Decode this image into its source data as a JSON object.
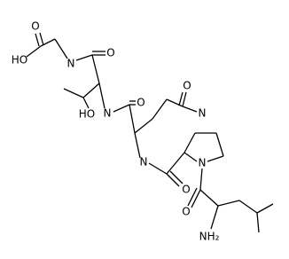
{
  "atoms": [
    {
      "label": "O"
    },
    {
      "label": "HO"
    },
    {
      "label": "N"
    },
    {
      "label": "O"
    },
    {
      "label": "HO"
    },
    {
      "label": "N"
    },
    {
      "label": "O"
    },
    {
      "label": "O"
    },
    {
      "label": "N"
    },
    {
      "label": "N"
    },
    {
      "label": "O"
    },
    {
      "label": "N"
    },
    {
      "label": "O"
    },
    {
      "label": "NH₂"
    }
  ]
}
